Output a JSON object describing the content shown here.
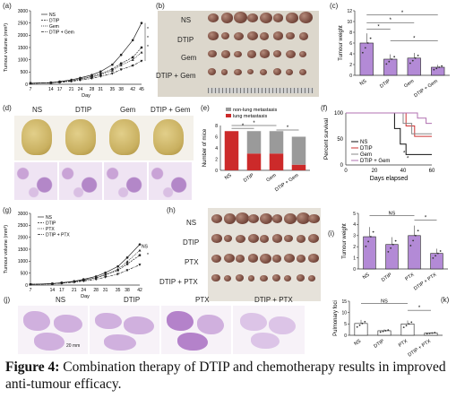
{
  "panels": {
    "a": {
      "label": "(a)",
      "chart_data": {
        "type": "line",
        "ylabel": "Tumour volume (mm³)",
        "xlabel": "Day",
        "x": [
          7,
          14,
          17,
          21,
          24,
          28,
          31,
          35,
          38,
          42,
          45
        ],
        "ylim": [
          0,
          3000
        ],
        "yticks": [
          "0",
          "500",
          "1000",
          "1500",
          "2000",
          "2500",
          "3000"
        ],
        "series": [
          {
            "name": "NS",
            "marker": "circle",
            "values": [
              40,
              70,
              110,
              180,
              260,
              380,
              520,
              800,
              1200,
              1800,
              2500
            ]
          },
          {
            "name": "DTIP",
            "marker": "square",
            "values": [
              40,
              60,
              95,
              150,
              220,
              320,
              430,
              620,
              850,
              1100,
              1500
            ]
          },
          {
            "name": "Gem",
            "marker": "triangle",
            "values": [
              40,
              60,
              90,
              140,
              200,
              290,
              390,
              560,
              780,
              1000,
              1300
            ]
          },
          {
            "name": "DTIP + Gem",
            "marker": "triangle-down",
            "values": [
              40,
              55,
              80,
              120,
              170,
              240,
              320,
              440,
              600,
              760,
              950
            ]
          }
        ],
        "annotations": [
          "*",
          "*",
          "*"
        ]
      }
    },
    "b": {
      "label": "(b)",
      "groups": [
        "NS",
        "DTIP",
        "Gem",
        "DTIP + Gem"
      ]
    },
    "c": {
      "label": "(c)",
      "chart_data": {
        "type": "bar",
        "ylabel": "Tumour weight",
        "categories": [
          "NS",
          "DTIP",
          "Gem",
          "DTIP + Gem"
        ],
        "values": [
          6.0,
          3.0,
          3.2,
          1.5
        ],
        "ylim": [
          0,
          12
        ],
        "yticks": [
          "0",
          "2",
          "4",
          "6",
          "8",
          "10",
          "12"
        ],
        "annotations": [
          "*",
          "*",
          "*",
          "*"
        ]
      }
    },
    "d": {
      "label": "(d)",
      "groups": [
        "NS",
        "DTIP",
        "Gem",
        "DTIP + Gem"
      ]
    },
    "e": {
      "label": "(e)",
      "chart_data": {
        "type": "bar",
        "ylabel": "Number of mice",
        "categories": [
          "NS",
          "DTIP",
          "Gem",
          "DTIP + Gem"
        ],
        "series": [
          {
            "name": "non-lung metastasis",
            "color": "#9a9a9a",
            "values": [
              0,
              4,
              4,
              5
            ]
          },
          {
            "name": "lung metastasis",
            "color": "#cc2a2a",
            "values": [
              7,
              3,
              3,
              1
            ]
          }
        ],
        "ylim": [
          0,
          8
        ],
        "yticks": [
          "0",
          "2",
          "4",
          "6",
          "8"
        ],
        "annotations": [
          "*",
          "*",
          "*",
          "*"
        ]
      }
    },
    "f": {
      "label": "(f)",
      "chart_data": {
        "type": "line",
        "ylabel": "Percent survival",
        "xlabel": "Days elapsed",
        "xlim": [
          0,
          60
        ],
        "ylim": [
          0,
          100
        ],
        "xticks": [
          "0",
          "20",
          "40",
          "60"
        ],
        "yticks": [
          "0",
          "50",
          "100"
        ],
        "series": [
          {
            "name": "NS",
            "color": "#111111",
            "x": [
              0,
              30,
              34,
              38,
              42,
              60
            ],
            "values": [
              100,
              100,
              70,
              40,
              20,
              20
            ]
          },
          {
            "name": "DTIP",
            "color": "#cc3333",
            "x": [
              0,
              36,
              42,
              48,
              60
            ],
            "values": [
              100,
              100,
              75,
              55,
              55
            ]
          },
          {
            "name": "Gem",
            "color": "#888888",
            "x": [
              0,
              34,
              40,
              46,
              60
            ],
            "values": [
              100,
              100,
              80,
              60,
              60
            ]
          },
          {
            "name": "DTIP + Gem",
            "color": "#b070b0",
            "x": [
              0,
              42,
              50,
              56,
              60
            ],
            "values": [
              100,
              100,
              90,
              80,
              80
            ]
          }
        ],
        "annotations": [
          "*",
          "*"
        ]
      }
    },
    "g": {
      "label": "(g)",
      "chart_data": {
        "type": "line",
        "ylabel": "Tumour volume (mm³)",
        "xlabel": "Day",
        "x": [
          7,
          14,
          17,
          21,
          24,
          28,
          31,
          35,
          38,
          42
        ],
        "ylim": [
          0,
          3000
        ],
        "yticks": [
          "0",
          "500",
          "1000",
          "1500",
          "2000",
          "2500",
          "3000"
        ],
        "series": [
          {
            "name": "NS",
            "marker": "circle",
            "values": [
              30,
              60,
              100,
              160,
              240,
              360,
              520,
              780,
              1150,
              1700
            ]
          },
          {
            "name": "DTIP",
            "marker": "square",
            "values": [
              30,
              55,
              90,
              140,
              210,
              300,
              430,
              620,
              880,
              1250
            ]
          },
          {
            "name": "PTX",
            "marker": "triangle",
            "values": [
              30,
              55,
              85,
              140,
              200,
              300,
              440,
              660,
              980,
              1450
            ]
          },
          {
            "name": "DTIP + PTX",
            "marker": "triangle-down",
            "values": [
              30,
              50,
              80,
              120,
              170,
              240,
              330,
              460,
              620,
              850
            ]
          }
        ],
        "annotations": [
          "NS",
          "*"
        ]
      }
    },
    "h": {
      "label": "(h)",
      "groups": [
        "NS",
        "DTIP",
        "PTX",
        "DTIP + PTX"
      ]
    },
    "i": {
      "label": "(i)",
      "chart_data": {
        "type": "bar",
        "ylabel": "Tumour weight",
        "categories": [
          "NS",
          "DTIP",
          "PTX",
          "DTIP + PTX"
        ],
        "values": [
          2.9,
          2.2,
          3.0,
          1.4
        ],
        "ylim": [
          0,
          5
        ],
        "yticks": [
          "0",
          "1",
          "2",
          "3",
          "4",
          "5"
        ],
        "annotations": [
          "NS",
          "*"
        ]
      }
    },
    "j": {
      "label": "(j)",
      "groups": [
        "NS",
        "DTIP",
        "PTX",
        "DTIP + PTX"
      ],
      "scalebar": "20 mm"
    },
    "k": {
      "label": "(k)",
      "chart_data": {
        "type": "bar",
        "ylabel": "Pulmonary foci",
        "categories": [
          "NS",
          "DTIP",
          "PTX",
          "DTIP + PTX"
        ],
        "values": [
          5.2,
          2.0,
          5.0,
          1.0
        ],
        "ylim": [
          0,
          15
        ],
        "yticks": [
          "0",
          "5",
          "10",
          "15"
        ],
        "annotations": [
          "NS",
          "*"
        ]
      }
    }
  },
  "caption": {
    "prefix": "Figure 4:",
    "text": " Combination therapy of DTIP and chemotherapy results in improved anti-tumour efficacy."
  },
  "colors": {
    "bar_fill_c": "#b38ad6",
    "bar_fill_i": "#b38ad6",
    "accent_red": "#cc2a2a"
  }
}
